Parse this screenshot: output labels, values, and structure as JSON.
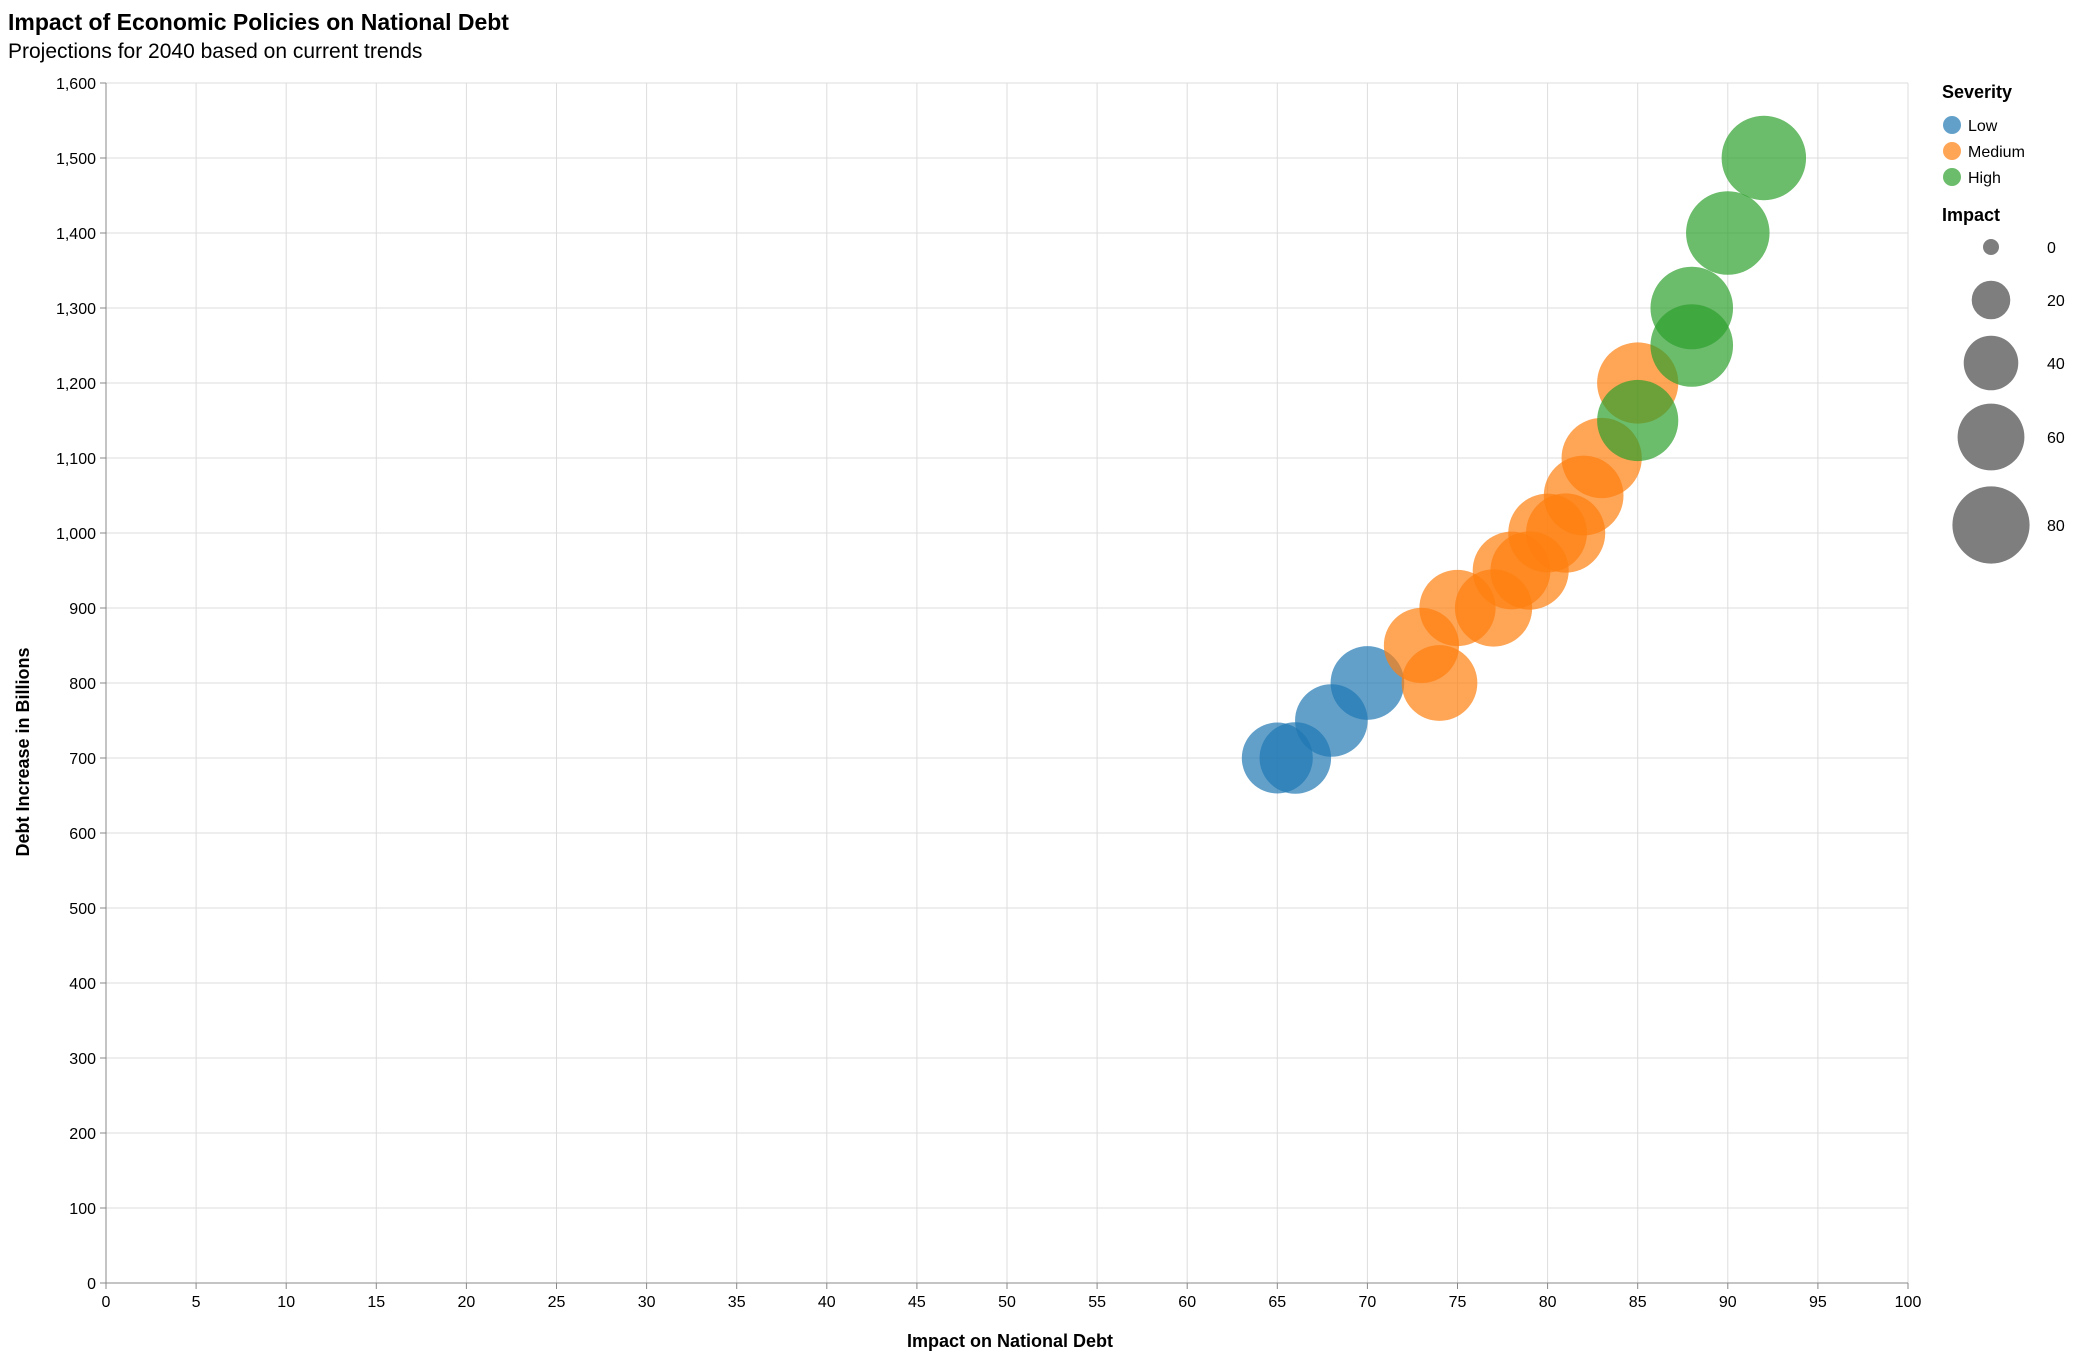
{
  "chart_data": {
    "type": "scatter",
    "title": "Impact of Economic Policies on National Debt",
    "subtitle": "Projections for 2040 based on current trends",
    "xlabel": "Impact on National Debt",
    "ylabel": "Debt Increase in Billions",
    "xlim": [
      0,
      100
    ],
    "ylim": [
      0,
      1600
    ],
    "x_ticks": [
      "0",
      "5",
      "10",
      "15",
      "20",
      "25",
      "30",
      "35",
      "40",
      "45",
      "50",
      "55",
      "60",
      "65",
      "70",
      "75",
      "80",
      "85",
      "90",
      "95",
      "100"
    ],
    "y_ticks": [
      "0",
      "100",
      "200",
      "300",
      "400",
      "500",
      "600",
      "700",
      "800",
      "900",
      "1,000",
      "1,100",
      "1,200",
      "1,300",
      "1,400",
      "1,500",
      "1,600"
    ],
    "grid": true,
    "legend_placement": "top-right",
    "color_legend": {
      "title": "Severity",
      "entries": [
        {
          "label": "Low",
          "color": "#1f77b4"
        },
        {
          "label": "Medium",
          "color": "#ff7f0e"
        },
        {
          "label": "High",
          "color": "#2ca02c"
        }
      ]
    },
    "size_legend": {
      "title": "Impact",
      "values": [
        0,
        20,
        40,
        60,
        80
      ],
      "labels": [
        "0",
        "20",
        "40",
        "60",
        "80"
      ]
    },
    "size_domain_max": 92,
    "opacity": 0.7,
    "points": [
      {
        "x": 65,
        "y": 700,
        "size": 65,
        "severity": "Low"
      },
      {
        "x": 66,
        "y": 700,
        "size": 66,
        "severity": "Low"
      },
      {
        "x": 68,
        "y": 750,
        "size": 68,
        "severity": "Low"
      },
      {
        "x": 70,
        "y": 800,
        "size": 70,
        "severity": "Low"
      },
      {
        "x": 73,
        "y": 850,
        "size": 73,
        "severity": "Medium"
      },
      {
        "x": 74,
        "y": 800,
        "size": 74,
        "severity": "Medium"
      },
      {
        "x": 75,
        "y": 900,
        "size": 75,
        "severity": "Medium"
      },
      {
        "x": 77,
        "y": 900,
        "size": 77,
        "severity": "Medium"
      },
      {
        "x": 78,
        "y": 950,
        "size": 78,
        "severity": "Medium"
      },
      {
        "x": 79,
        "y": 950,
        "size": 79,
        "severity": "Medium"
      },
      {
        "x": 80,
        "y": 1000,
        "size": 80,
        "severity": "Medium"
      },
      {
        "x": 81,
        "y": 1000,
        "size": 81,
        "severity": "Medium"
      },
      {
        "x": 82,
        "y": 1050,
        "size": 82,
        "severity": "Medium"
      },
      {
        "x": 83,
        "y": 1100,
        "size": 83,
        "severity": "Medium"
      },
      {
        "x": 85,
        "y": 1200,
        "size": 85,
        "severity": "Medium"
      },
      {
        "x": 85,
        "y": 1150,
        "size": 85,
        "severity": "High"
      },
      {
        "x": 88,
        "y": 1250,
        "size": 88,
        "severity": "High"
      },
      {
        "x": 88,
        "y": 1300,
        "size": 88,
        "severity": "High"
      },
      {
        "x": 90,
        "y": 1400,
        "size": 90,
        "severity": "High"
      },
      {
        "x": 92,
        "y": 1500,
        "size": 92,
        "severity": "High"
      }
    ]
  }
}
